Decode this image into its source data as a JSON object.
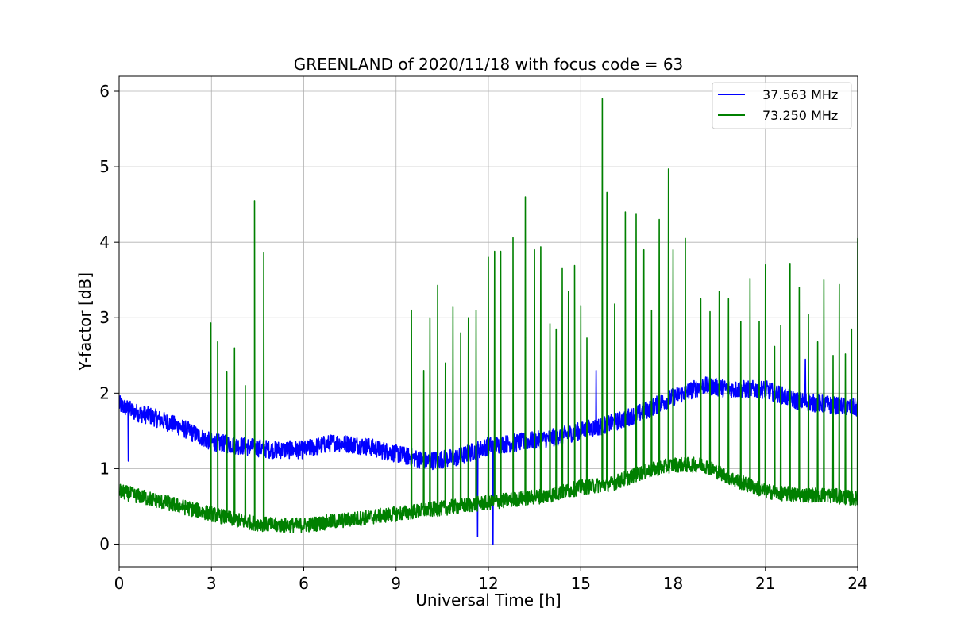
{
  "chart_data": {
    "type": "line",
    "title": "GREENLAND of 2020/11/18 with focus code = 63",
    "xlabel": "Universal Time [h]",
    "ylabel": "Y-factor [dB]",
    "xlim": [
      0,
      24
    ],
    "ylim": [
      -0.3,
      6.2
    ],
    "xticks": [
      0,
      3,
      6,
      9,
      12,
      15,
      18,
      21,
      24
    ],
    "yticks": [
      0,
      1,
      2,
      3,
      4,
      5,
      6
    ],
    "grid": true,
    "legend_position": "top-right",
    "series": [
      {
        "name": "37.563 MHz",
        "color": "#0000ff",
        "baseline": [
          [
            0,
            1.85
          ],
          [
            0.5,
            1.75
          ],
          [
            1,
            1.7
          ],
          [
            2,
            1.55
          ],
          [
            3,
            1.35
          ],
          [
            4,
            1.3
          ],
          [
            5,
            1.25
          ],
          [
            6,
            1.25
          ],
          [
            7,
            1.35
          ],
          [
            8,
            1.3
          ],
          [
            9,
            1.2
          ],
          [
            10,
            1.1
          ],
          [
            11,
            1.15
          ],
          [
            12,
            1.3
          ],
          [
            13,
            1.35
          ],
          [
            14,
            1.4
          ],
          [
            15,
            1.5
          ],
          [
            16,
            1.6
          ],
          [
            17,
            1.75
          ],
          [
            18,
            1.95
          ],
          [
            19,
            2.1
          ],
          [
            20,
            2.05
          ],
          [
            21,
            2.05
          ],
          [
            22,
            1.9
          ],
          [
            23,
            1.85
          ],
          [
            24,
            1.8
          ]
        ],
        "spikes": [
          [
            0.3,
            1.1
          ],
          [
            11.65,
            0.1
          ],
          [
            12.15,
            0.0
          ],
          [
            15.5,
            2.3
          ],
          [
            21.8,
            1.3
          ],
          [
            22.3,
            2.45
          ]
        ]
      },
      {
        "name": "73.250 MHz",
        "color": "#008000",
        "baseline": [
          [
            0,
            0.7
          ],
          [
            1,
            0.6
          ],
          [
            2,
            0.5
          ],
          [
            3,
            0.4
          ],
          [
            4,
            0.3
          ],
          [
            5,
            0.25
          ],
          [
            6,
            0.25
          ],
          [
            7,
            0.3
          ],
          [
            8,
            0.35
          ],
          [
            9,
            0.4
          ],
          [
            10,
            0.45
          ],
          [
            11,
            0.5
          ],
          [
            12,
            0.55
          ],
          [
            13,
            0.6
          ],
          [
            14,
            0.65
          ],
          [
            15,
            0.75
          ],
          [
            16,
            0.8
          ],
          [
            17,
            0.95
          ],
          [
            18,
            1.05
          ],
          [
            19,
            1.05
          ],
          [
            20,
            0.85
          ],
          [
            21,
            0.7
          ],
          [
            22,
            0.65
          ],
          [
            23,
            0.65
          ],
          [
            24,
            0.6
          ]
        ],
        "spikes": [
          [
            2.98,
            2.93
          ],
          [
            3.2,
            2.68
          ],
          [
            3.5,
            2.28
          ],
          [
            3.75,
            2.6
          ],
          [
            4.1,
            2.1
          ],
          [
            4.4,
            4.55
          ],
          [
            4.7,
            3.86
          ],
          [
            9.5,
            3.1
          ],
          [
            9.9,
            2.3
          ],
          [
            10.1,
            3.0
          ],
          [
            10.35,
            3.43
          ],
          [
            10.6,
            2.4
          ],
          [
            10.85,
            3.14
          ],
          [
            11.1,
            2.8
          ],
          [
            11.35,
            3.0
          ],
          [
            11.6,
            3.1
          ],
          [
            12.0,
            3.8
          ],
          [
            12.2,
            3.88
          ],
          [
            12.4,
            3.88
          ],
          [
            12.8,
            4.06
          ],
          [
            13.2,
            4.6
          ],
          [
            13.5,
            3.9
          ],
          [
            13.7,
            3.94
          ],
          [
            14.0,
            2.92
          ],
          [
            14.2,
            2.85
          ],
          [
            14.4,
            3.65
          ],
          [
            14.6,
            3.35
          ],
          [
            14.8,
            3.69
          ],
          [
            15.0,
            3.16
          ],
          [
            15.2,
            2.73
          ],
          [
            15.7,
            5.9
          ],
          [
            15.85,
            4.66
          ],
          [
            16.1,
            3.18
          ],
          [
            16.45,
            4.4
          ],
          [
            16.8,
            4.38
          ],
          [
            17.05,
            3.9
          ],
          [
            17.3,
            3.1
          ],
          [
            17.55,
            4.3
          ],
          [
            17.85,
            4.97
          ],
          [
            18.0,
            3.9
          ],
          [
            18.4,
            4.05
          ],
          [
            18.9,
            3.25
          ],
          [
            19.2,
            3.08
          ],
          [
            19.5,
            3.35
          ],
          [
            19.8,
            3.25
          ],
          [
            20.2,
            2.95
          ],
          [
            20.5,
            3.52
          ],
          [
            20.8,
            2.95
          ],
          [
            21.0,
            3.7
          ],
          [
            21.3,
            2.62
          ],
          [
            21.5,
            2.9
          ],
          [
            21.8,
            3.72
          ],
          [
            22.1,
            3.4
          ],
          [
            22.4,
            3.04
          ],
          [
            22.7,
            2.68
          ],
          [
            22.9,
            3.5
          ],
          [
            23.2,
            2.5
          ],
          [
            23.4,
            3.44
          ],
          [
            23.6,
            2.52
          ],
          [
            23.8,
            2.85
          ],
          [
            24.0,
            4.05
          ]
        ]
      }
    ]
  }
}
